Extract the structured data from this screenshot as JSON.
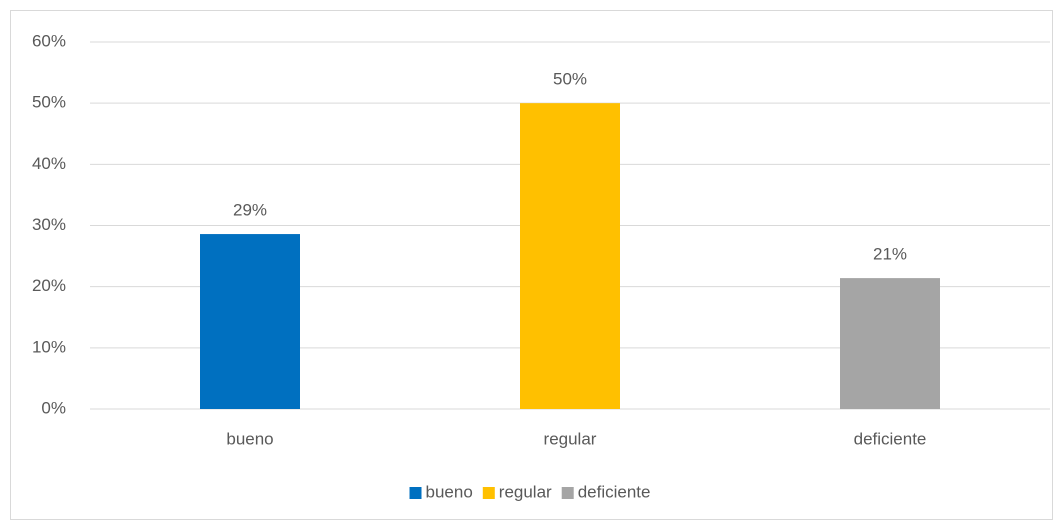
{
  "chart_data": {
    "type": "bar",
    "categories": [
      "bueno",
      "regular",
      "deficiente"
    ],
    "values": [
      28.6,
      50,
      21.4
    ],
    "value_labels": [
      "29%",
      "50%",
      "21%"
    ],
    "colors": [
      "#0070c0",
      "#ffc000",
      "#a5a5a5"
    ],
    "ylim": [
      0,
      60
    ],
    "yticks": [
      {
        "value": 0,
        "label": "0%"
      },
      {
        "value": 10,
        "label": "10%"
      },
      {
        "value": 20,
        "label": "20%"
      },
      {
        "value": 30,
        "label": "30%"
      },
      {
        "value": 40,
        "label": "40%"
      },
      {
        "value": 50,
        "label": "50%"
      },
      {
        "value": 60,
        "label": "60%"
      }
    ],
    "grid": true,
    "legend": "bottom"
  }
}
